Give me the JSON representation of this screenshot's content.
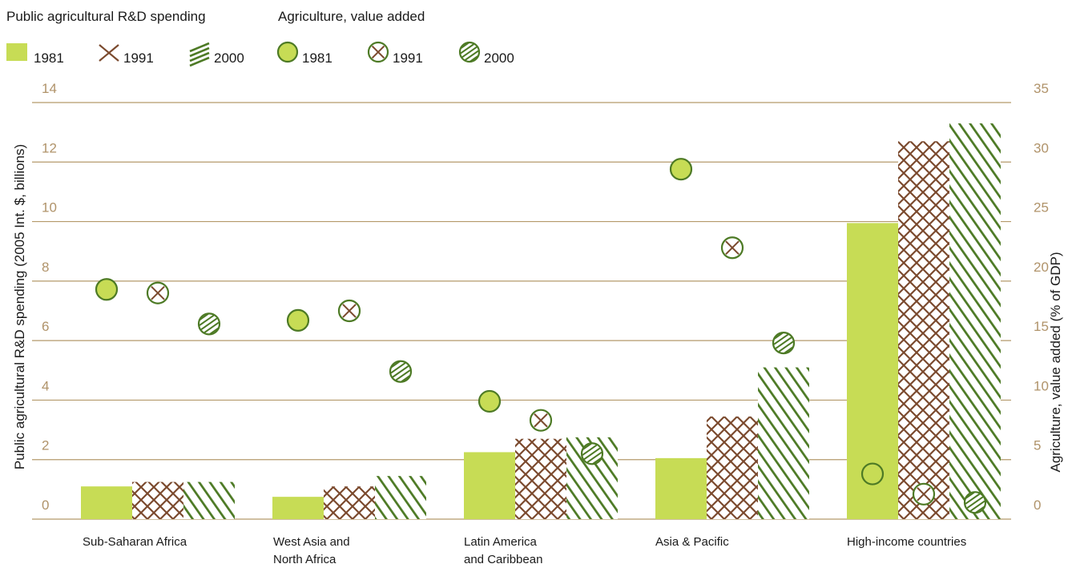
{
  "colors": {
    "bar": "#c7dc55",
    "hatch_cross": "#7b4a2e",
    "hatch_diag": "#4d7a25",
    "grid": "#b49a6b",
    "tick": "#b0936a"
  },
  "chart_data": {
    "type": "bar",
    "categories": [
      [
        "Sub-Saharan Africa"
      ],
      [
        "West Asia and",
        "North Africa"
      ],
      [
        "Latin America",
        "and Caribbean"
      ],
      [
        "Asia & Pacific"
      ],
      [
        "High-income countries"
      ]
    ],
    "legend": {
      "group1_title": "Public agricultural R&D spending",
      "group2_title": "Agriculture, value added",
      "bar_labels": [
        "1981",
        "1991",
        "2000"
      ],
      "point_labels": [
        "1981",
        "1991",
        "2000"
      ],
      "placement": "top-left"
    },
    "bar_series": [
      {
        "name": "1981",
        "values": [
          1.1,
          0.75,
          2.25,
          2.05,
          9.95
        ]
      },
      {
        "name": "1991",
        "values": [
          1.25,
          1.1,
          2.7,
          3.45,
          12.7
        ]
      },
      {
        "name": "2000",
        "values": [
          1.25,
          1.45,
          2.75,
          5.1,
          13.3
        ]
      }
    ],
    "point_series": [
      {
        "name": "1981",
        "values": [
          19.3,
          16.7,
          9.9,
          29.4,
          3.8
        ]
      },
      {
        "name": "1991",
        "values": [
          19.0,
          17.5,
          8.3,
          22.8,
          2.1
        ]
      },
      {
        "name": "2000",
        "values": [
          16.4,
          12.4,
          5.5,
          14.8,
          1.4
        ]
      }
    ],
    "ylabel": "Public agricultural R&D spending (2005 Int. $, billions)",
    "y2label": "Agriculture, value added (% of GDP)",
    "ylim": [
      0,
      14
    ],
    "y2lim": [
      0,
      35
    ],
    "yticks": [
      "0",
      "2",
      "4",
      "6",
      "8",
      "10",
      "12",
      "14"
    ],
    "y2ticks": [
      "0",
      "5",
      "10",
      "15",
      "20",
      "25",
      "30",
      "35"
    ],
    "grid": true
  }
}
